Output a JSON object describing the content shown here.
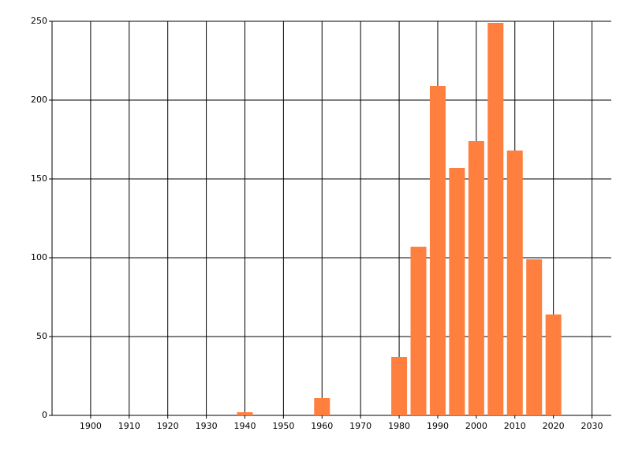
{
  "chart_data": {
    "type": "bar",
    "x": [
      1940,
      1960,
      1980,
      1985,
      1990,
      1995,
      2000,
      2005,
      2010,
      2015,
      2020
    ],
    "values": [
      2,
      11,
      37,
      107,
      209,
      157,
      174,
      249,
      168,
      99,
      64
    ],
    "color": "#ff7f3f",
    "xlim": [
      1890,
      2035
    ],
    "xticks": [
      1900,
      1910,
      1920,
      1930,
      1940,
      1950,
      1960,
      1970,
      1980,
      1990,
      2000,
      2010,
      2020,
      2030
    ],
    "ylim": [
      0,
      250
    ],
    "yticks": [
      0,
      50,
      100,
      150,
      200,
      250
    ],
    "grid": true
  }
}
